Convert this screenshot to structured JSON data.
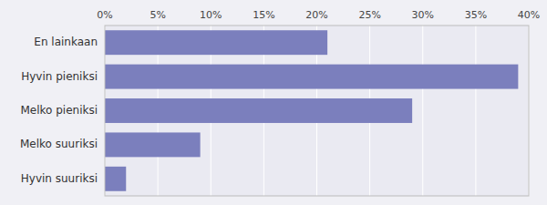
{
  "chart_data": {
    "type": "bar",
    "orientation": "horizontal",
    "categories": [
      "En lainkaan",
      "Hyvin pieniksi",
      "Melko pieniksi",
      "Melko suuriksi",
      "Hyvin suuriksi"
    ],
    "values": [
      21,
      39,
      29,
      9,
      2
    ],
    "color": "#7b7fbd",
    "xlim": [
      0,
      40
    ],
    "xticks": [
      {
        "value": 0,
        "label": "0%"
      },
      {
        "value": 5,
        "label": "5%"
      },
      {
        "value": 10,
        "label": "10%"
      },
      {
        "value": 15,
        "label": "15%"
      },
      {
        "value": 20,
        "label": "20%"
      },
      {
        "value": 25,
        "label": "25%"
      },
      {
        "value": 30,
        "label": "30%"
      },
      {
        "value": 35,
        "label": "35%"
      },
      {
        "value": 40,
        "label": "40%"
      }
    ],
    "grid": true
  }
}
